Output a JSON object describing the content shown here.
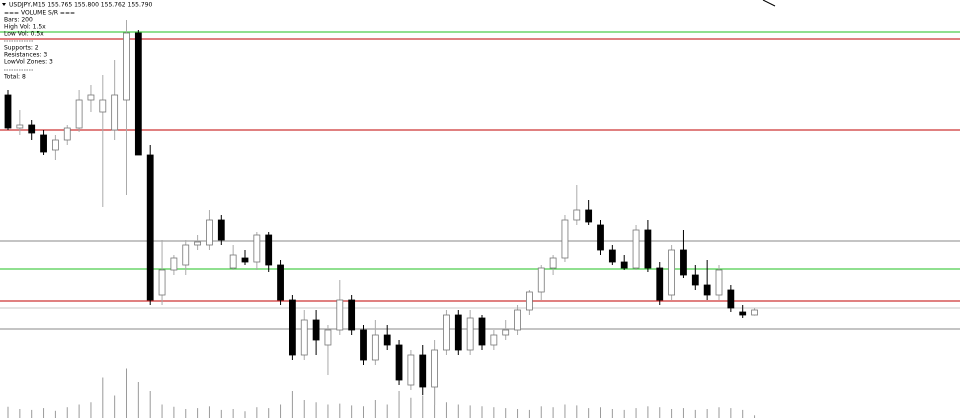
{
  "chart_data": {
    "type": "candlestick",
    "title": "USDJPY,M15  155.765 155.800 155.762 155.790",
    "info": [
      "=== VOLUME S/R ===",
      "Bars: 200",
      "High Vol: 1.5x",
      "Low Vol: 0.5x",
      "Supports: 2",
      "Resistances: 3",
      "LowVol Zones: 3",
      "Total: 8"
    ],
    "ylim": [
      155.25,
      157.34
    ],
    "volume_lim": [
      0,
      2000
    ],
    "bull_color": "#ffffff",
    "bear_color": "#000000",
    "wick_color": "#000000",
    "volume_color": "#9a9a9a",
    "open": [
      156.865,
      156.7,
      156.715,
      156.665,
      156.59,
      156.64,
      156.7,
      156.84,
      156.78,
      156.69,
      156.84,
      157.175,
      156.565,
      155.865,
      155.99,
      156.015,
      156.115,
      156.115,
      156.24,
      156.0,
      156.05,
      156.03,
      156.165,
      156.015,
      155.84,
      155.565,
      155.74,
      155.615,
      155.69,
      155.84,
      155.69,
      155.54,
      155.665,
      155.615,
      155.415,
      155.565,
      155.405,
      155.59,
      155.765,
      155.59,
      155.75,
      155.615,
      155.665,
      155.69,
      155.79,
      155.88,
      156.0,
      156.05,
      156.24,
      156.29,
      156.215,
      156.09,
      156.03,
      156.0,
      156.19,
      156.0,
      155.865,
      156.09,
      155.965,
      155.915,
      155.865,
      155.89,
      155.78,
      155.765
    ],
    "high": [
      156.89,
      156.79,
      156.74,
      156.69,
      156.665,
      156.715,
      156.89,
      156.915,
      156.965,
      157.04,
      157.24,
      157.19,
      156.615,
      156.14,
      156.065,
      156.14,
      156.165,
      156.29,
      156.265,
      156.115,
      156.09,
      156.18,
      156.18,
      156.04,
      155.865,
      155.79,
      155.79,
      155.715,
      155.94,
      155.865,
      155.715,
      155.74,
      155.715,
      155.64,
      155.59,
      155.615,
      155.64,
      155.79,
      155.79,
      155.79,
      155.765,
      155.69,
      155.74,
      155.815,
      155.89,
      156.015,
      156.065,
      156.265,
      156.415,
      156.34,
      156.24,
      156.115,
      156.065,
      156.215,
      156.24,
      156.03,
      156.115,
      156.19,
      156.015,
      156.04,
      156.015,
      155.915,
      155.815,
      155.8
    ],
    "low": [
      156.69,
      156.665,
      156.64,
      156.565,
      156.54,
      156.615,
      156.68,
      156.78,
      156.305,
      156.64,
      156.365,
      156.565,
      155.815,
      155.815,
      155.965,
      155.965,
      156.09,
      156.09,
      156.115,
      155.99,
      156.015,
      155.99,
      155.98,
      155.815,
      155.54,
      155.54,
      155.565,
      155.465,
      155.665,
      155.665,
      155.515,
      155.515,
      155.59,
      155.415,
      155.39,
      155.365,
      155.315,
      155.565,
      155.565,
      155.565,
      155.59,
      155.59,
      155.64,
      155.665,
      155.765,
      155.84,
      155.965,
      156.03,
      156.215,
      156.215,
      156.065,
      156.015,
      155.99,
      155.99,
      155.98,
      155.815,
      155.84,
      155.95,
      155.89,
      155.84,
      155.84,
      155.78,
      155.75,
      155.762
    ],
    "close": [
      156.7,
      156.715,
      156.675,
      156.58,
      156.64,
      156.7,
      156.84,
      156.865,
      156.84,
      156.865,
      157.175,
      156.565,
      155.84,
      155.99,
      156.05,
      156.115,
      156.13,
      156.24,
      156.14,
      156.065,
      156.03,
      156.165,
      156.015,
      155.84,
      155.565,
      155.74,
      155.64,
      155.69,
      155.84,
      155.69,
      155.54,
      155.665,
      155.615,
      155.44,
      155.565,
      155.405,
      155.59,
      155.765,
      155.59,
      155.75,
      155.615,
      155.665,
      155.69,
      155.79,
      155.88,
      156.0,
      156.05,
      156.24,
      156.29,
      156.23,
      156.09,
      156.03,
      156.0,
      156.19,
      156.0,
      155.84,
      156.09,
      155.965,
      155.915,
      155.865,
      155.99,
      155.8,
      155.765,
      155.79
    ],
    "volume": [
      250,
      200,
      180,
      220,
      160,
      240,
      300,
      350,
      900,
      500,
      1100,
      800,
      600,
      300,
      250,
      200,
      220,
      260,
      180,
      200,
      150,
      240,
      220,
      300,
      600,
      400,
      350,
      300,
      320,
      280,
      260,
      400,
      300,
      600,
      450,
      500,
      900,
      350,
      300,
      280,
      260,
      240,
      220,
      200,
      180,
      260,
      240,
      300,
      280,
      220,
      240,
      200,
      180,
      220,
      260,
      240,
      200,
      220,
      180,
      200,
      240,
      220,
      180,
      60
    ],
    "levels": [
      {
        "price": 157.18,
        "color": "#22c022"
      },
      {
        "price": 157.145,
        "color": "#c00000"
      },
      {
        "price": 156.69,
        "color": "#c00000"
      },
      {
        "price": 156.135,
        "color": "#8a8a8a"
      },
      {
        "price": 155.995,
        "color": "#22c022"
      },
      {
        "price": 155.835,
        "color": "#c00000"
      },
      {
        "price": 155.8,
        "color": "#c8c8c8"
      },
      {
        "price": 155.695,
        "color": "#8a8a8a"
      }
    ]
  }
}
